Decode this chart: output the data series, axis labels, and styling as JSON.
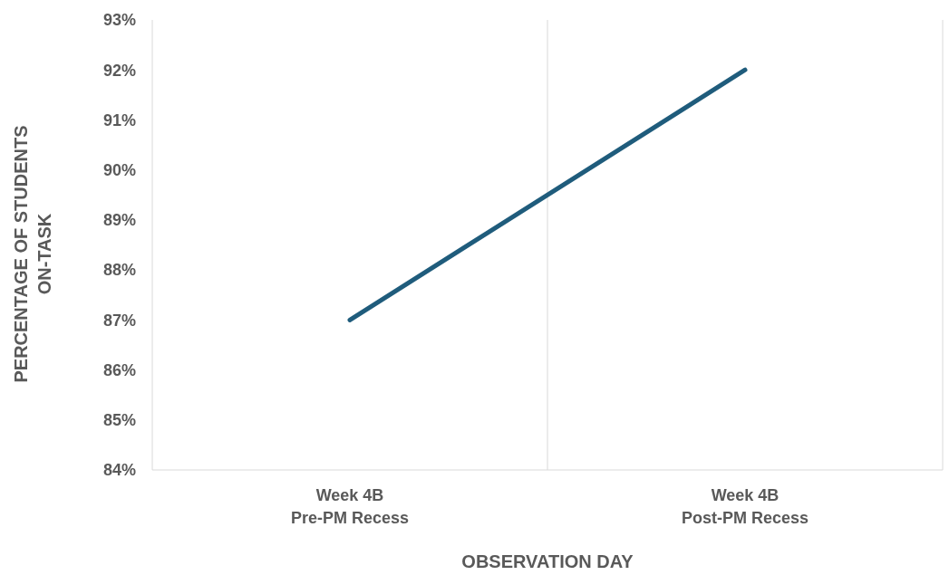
{
  "chart_data": {
    "type": "line",
    "xlabel": "OBSERVATION DAY",
    "ylabel": "PERCENTAGE OF STUDENTS\nON-TASK",
    "categories": [
      "Week 4B\nPre-PM Recess",
      "Week 4B\nPost-PM Recess"
    ],
    "series": [
      {
        "color": "#1f5c7c",
        "values": [
          87,
          92
        ]
      }
    ],
    "ylim": [
      84,
      93
    ],
    "yticks": [
      {
        "value": 84,
        "label": "84%"
      },
      {
        "value": 85,
        "label": "85%"
      },
      {
        "value": 86,
        "label": "86%"
      },
      {
        "value": 87,
        "label": "87%"
      },
      {
        "value": 88,
        "label": "88%"
      },
      {
        "value": 89,
        "label": "89%"
      },
      {
        "value": 90,
        "label": "90%"
      },
      {
        "value": 91,
        "label": "91%"
      },
      {
        "value": 92,
        "label": "92%"
      },
      {
        "value": 93,
        "label": "93%"
      }
    ],
    "grid": "x",
    "marker": "none",
    "line_style": "solid"
  }
}
